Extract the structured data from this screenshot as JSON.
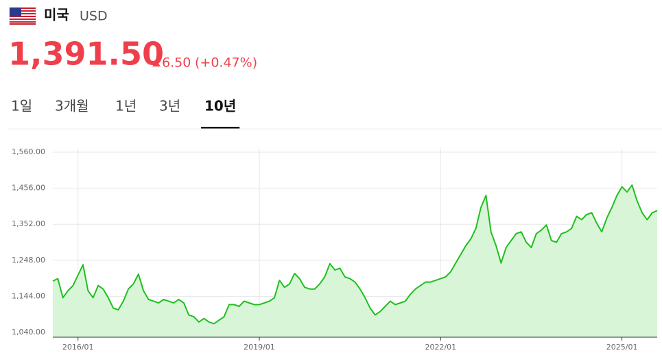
{
  "header": {
    "country": "미국",
    "currency": "USD",
    "price": "1,391.50",
    "change": "6.50",
    "change_pct": "(+0.47%)",
    "color": "#ef3f4b"
  },
  "tabs": {
    "items": [
      "1일",
      "3개월",
      "1년",
      "3년",
      "10년"
    ],
    "active": 4
  },
  "chart_data": {
    "type": "area",
    "color": "#1fbf1f",
    "fill": "#d8f5d8",
    "grid": true,
    "x": [
      "2015/08",
      "2015/09",
      "2015/10",
      "2015/11",
      "2015/12",
      "2016/01",
      "2016/02",
      "2016/03",
      "2016/04",
      "2016/05",
      "2016/06",
      "2016/07",
      "2016/08",
      "2016/09",
      "2016/10",
      "2016/11",
      "2016/12",
      "2017/01",
      "2017/02",
      "2017/03",
      "2017/04",
      "2017/05",
      "2017/06",
      "2017/07",
      "2017/08",
      "2017/09",
      "2017/10",
      "2017/11",
      "2017/12",
      "2018/01",
      "2018/02",
      "2018/03",
      "2018/04",
      "2018/05",
      "2018/06",
      "2018/07",
      "2018/08",
      "2018/09",
      "2018/10",
      "2018/11",
      "2018/12",
      "2019/01",
      "2019/02",
      "2019/03",
      "2019/04",
      "2019/05",
      "2019/06",
      "2019/07",
      "2019/08",
      "2019/09",
      "2019/10",
      "2019/11",
      "2019/12",
      "2020/01",
      "2020/02",
      "2020/03",
      "2020/04",
      "2020/05",
      "2020/06",
      "2020/07",
      "2020/08",
      "2020/09",
      "2020/10",
      "2020/11",
      "2020/12",
      "2021/01",
      "2021/02",
      "2021/03",
      "2021/04",
      "2021/05",
      "2021/06",
      "2021/07",
      "2021/08",
      "2021/09",
      "2021/10",
      "2021/11",
      "2021/12",
      "2022/01",
      "2022/02",
      "2022/03",
      "2022/04",
      "2022/05",
      "2022/06",
      "2022/07",
      "2022/08",
      "2022/09",
      "2022/10",
      "2022/11",
      "2022/12",
      "2023/01",
      "2023/02",
      "2023/03",
      "2023/04",
      "2023/05",
      "2023/06",
      "2023/07",
      "2023/08",
      "2023/09",
      "2023/10",
      "2023/11",
      "2023/12",
      "2024/01",
      "2024/02",
      "2024/03",
      "2024/04",
      "2024/05",
      "2024/06",
      "2024/07",
      "2024/08",
      "2024/09",
      "2024/10",
      "2024/11",
      "2024/12",
      "2025/01",
      "2025/02",
      "2025/03",
      "2025/04",
      "2025/05",
      "2025/06",
      "2025/07",
      "2025/08"
    ],
    "values": [
      1188,
      1195,
      1140,
      1160,
      1175,
      1205,
      1235,
      1160,
      1140,
      1175,
      1165,
      1140,
      1110,
      1105,
      1130,
      1165,
      1180,
      1208,
      1160,
      1135,
      1130,
      1125,
      1135,
      1130,
      1125,
      1135,
      1125,
      1090,
      1085,
      1070,
      1080,
      1070,
      1065,
      1075,
      1085,
      1120,
      1120,
      1115,
      1130,
      1125,
      1120,
      1120,
      1125,
      1130,
      1140,
      1190,
      1170,
      1180,
      1210,
      1195,
      1170,
      1165,
      1165,
      1180,
      1200,
      1238,
      1220,
      1225,
      1200,
      1195,
      1185,
      1165,
      1140,
      1110,
      1090,
      1100,
      1115,
      1130,
      1120,
      1125,
      1130,
      1150,
      1165,
      1175,
      1185,
      1185,
      1190,
      1195,
      1200,
      1215,
      1240,
      1265,
      1290,
      1310,
      1340,
      1400,
      1435,
      1330,
      1290,
      1240,
      1285,
      1305,
      1325,
      1330,
      1300,
      1285,
      1325,
      1335,
      1350,
      1305,
      1300,
      1325,
      1330,
      1340,
      1375,
      1365,
      1380,
      1385,
      1355,
      1330,
      1370,
      1400,
      1435,
      1460,
      1445,
      1465,
      1420,
      1385,
      1365,
      1385,
      1391.5
    ],
    "ylim": [
      1026,
      1570
    ],
    "yticks": [
      {
        "value": 1040,
        "label": "1,040.00"
      },
      {
        "value": 1144,
        "label": "1,144.00"
      },
      {
        "value": 1248,
        "label": "1,248.00"
      },
      {
        "value": 1352,
        "label": "1,352.00"
      },
      {
        "value": 1456,
        "label": "1,456.00"
      },
      {
        "value": 1560,
        "label": "1,560.00"
      }
    ],
    "xticks": [
      "2016/01",
      "2019/01",
      "2022/01",
      "2025/01"
    ]
  }
}
